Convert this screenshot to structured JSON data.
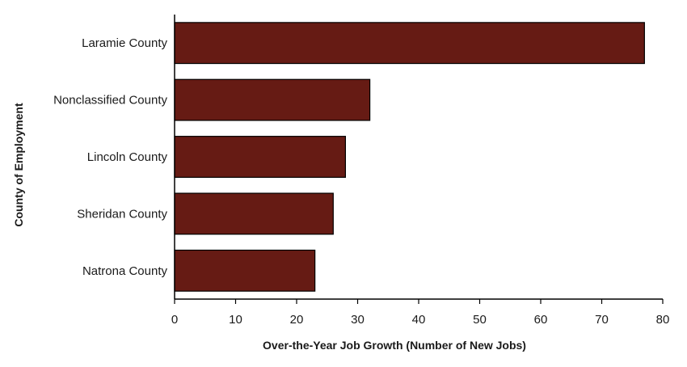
{
  "chart_data": {
    "type": "bar",
    "orientation": "horizontal",
    "title": "",
    "xlabel": "Over-the-Year Job Growth (Number of New Jobs)",
    "ylabel": "County of Employment",
    "categories": [
      "Laramie County",
      "Nonclassified County",
      "Lincoln County",
      "Sheridan County",
      "Natrona County"
    ],
    "values": [
      77,
      32,
      28,
      26,
      23
    ],
    "xlim": [
      0,
      80
    ],
    "xticks": [
      "0",
      "10",
      "20",
      "30",
      "40",
      "50",
      "60",
      "70",
      "80"
    ],
    "grid": false,
    "legend": "none",
    "bar_color": "#661b14",
    "bar_edge_color": "#000000"
  }
}
